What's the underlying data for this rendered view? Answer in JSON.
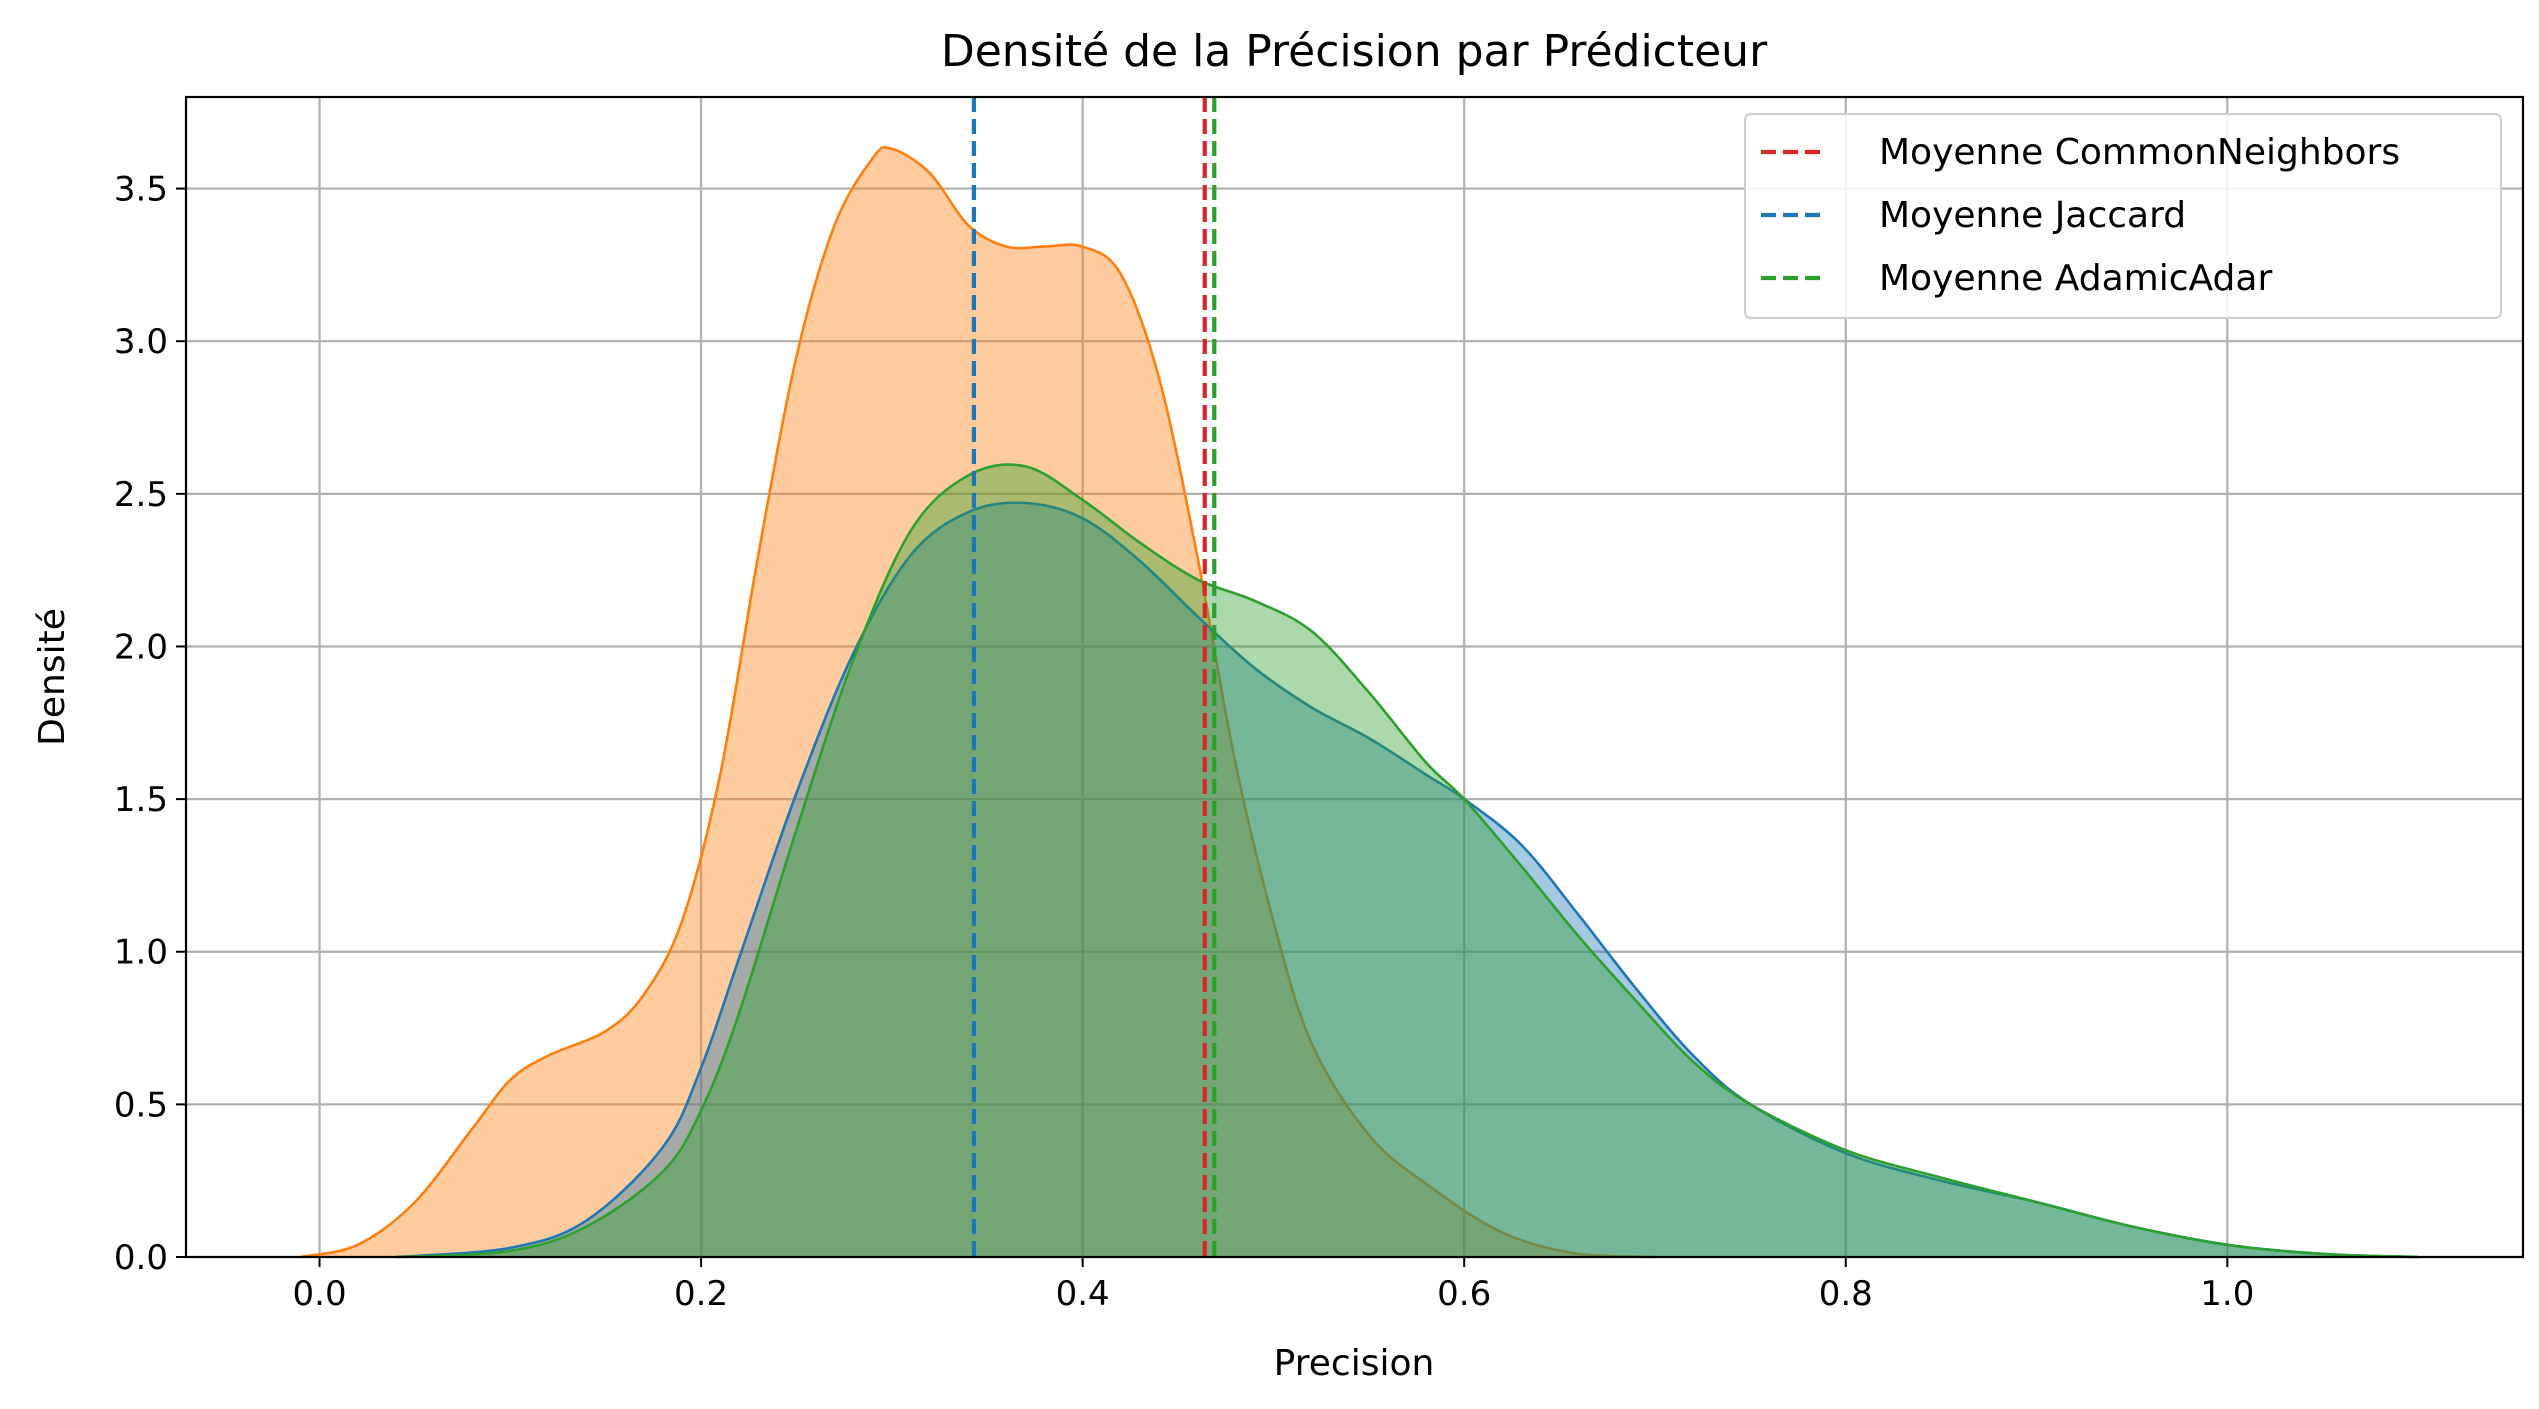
{
  "chart_data": {
    "type": "area",
    "title": "Densité de la Précision par Prédicteur",
    "xlabel": "Precision",
    "ylabel": "Densité",
    "xlim": [
      -0.07,
      1.155
    ],
    "ylim": [
      0,
      3.8
    ],
    "xticks": [
      0.0,
      0.2,
      0.4,
      0.6,
      0.8,
      1.0
    ],
    "xtick_labels": [
      "0.0",
      "0.2",
      "0.4",
      "0.6",
      "0.8",
      "1.0"
    ],
    "yticks": [
      0.0,
      0.5,
      1.0,
      1.5,
      2.0,
      2.5,
      3.0,
      3.5
    ],
    "ytick_labels": [
      "0.0",
      "0.5",
      "1.0",
      "1.5",
      "2.0",
      "2.5",
      "3.0",
      "3.5"
    ],
    "grid": true,
    "legend_position": "top-right",
    "series": [
      {
        "color": "#ff7f0e",
        "x": [
          -0.01,
          0.02,
          0.05,
          0.08,
          0.1,
          0.12,
          0.15,
          0.17,
          0.19,
          0.21,
          0.23,
          0.25,
          0.27,
          0.29,
          0.3,
          0.32,
          0.34,
          0.36,
          0.38,
          0.4,
          0.42,
          0.44,
          0.46,
          0.48,
          0.5,
          0.52,
          0.55,
          0.58,
          0.62,
          0.66,
          0.7
        ],
        "y": [
          0.0,
          0.04,
          0.18,
          0.42,
          0.58,
          0.66,
          0.74,
          0.86,
          1.1,
          1.58,
          2.3,
          2.95,
          3.38,
          3.6,
          3.63,
          3.55,
          3.38,
          3.31,
          3.31,
          3.31,
          3.22,
          2.88,
          2.3,
          1.62,
          1.1,
          0.7,
          0.4,
          0.24,
          0.08,
          0.01,
          0.0
        ]
      },
      {
        "name": "",
        "color": "#1f77b4",
        "x": [
          0.04,
          0.1,
          0.14,
          0.18,
          0.2,
          0.22,
          0.25,
          0.28,
          0.31,
          0.34,
          0.37,
          0.4,
          0.43,
          0.46,
          0.49,
          0.52,
          0.55,
          0.58,
          0.6,
          0.63,
          0.66,
          0.69,
          0.72,
          0.75,
          0.8,
          0.85,
          0.9,
          0.95,
          1.0,
          1.05,
          1.1
        ],
        "y": [
          0.0,
          0.03,
          0.12,
          0.36,
          0.62,
          0.98,
          1.52,
          1.98,
          2.3,
          2.44,
          2.47,
          2.42,
          2.28,
          2.1,
          1.93,
          1.8,
          1.7,
          1.58,
          1.5,
          1.35,
          1.12,
          0.88,
          0.66,
          0.5,
          0.34,
          0.25,
          0.18,
          0.1,
          0.04,
          0.01,
          0.0
        ]
      },
      {
        "color": "#2ca02c",
        "x": [
          0.04,
          0.1,
          0.14,
          0.18,
          0.2,
          0.22,
          0.25,
          0.28,
          0.31,
          0.34,
          0.37,
          0.4,
          0.43,
          0.46,
          0.49,
          0.52,
          0.55,
          0.58,
          0.6,
          0.63,
          0.66,
          0.69,
          0.72,
          0.75,
          0.8,
          0.85,
          0.9,
          0.95,
          1.0,
          1.05,
          1.1
        ],
        "y": [
          0.0,
          0.02,
          0.1,
          0.28,
          0.48,
          0.8,
          1.4,
          1.96,
          2.38,
          2.56,
          2.59,
          2.48,
          2.34,
          2.22,
          2.15,
          2.05,
          1.85,
          1.62,
          1.5,
          1.28,
          1.05,
          0.84,
          0.64,
          0.5,
          0.35,
          0.26,
          0.18,
          0.1,
          0.04,
          0.01,
          0.0
        ]
      }
    ],
    "mean_lines": [
      {
        "name": "Moyenne CommonNeighbors",
        "x": 0.464,
        "color": "#d62728"
      },
      {
        "name": "Moyenne Jaccard",
        "x": 0.343,
        "color": "#1f77b4"
      },
      {
        "name": "Moyenne AdamicAdar",
        "x": 0.469,
        "color": "#2ca02c"
      }
    ]
  }
}
